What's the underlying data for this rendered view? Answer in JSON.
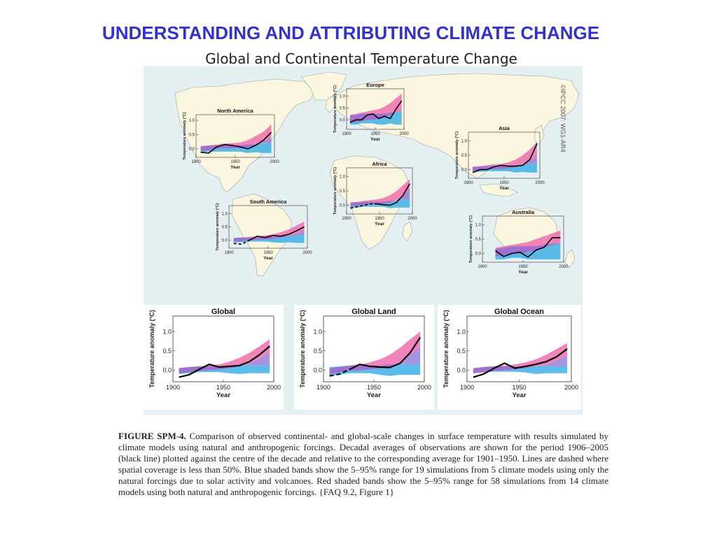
{
  "slide": {
    "title": "UNDERSTANDING AND ATTRIBUTING CLIMATE CHANGE",
    "figure_title": "Global and Continental Temperature Change",
    "copyright": "©IPCC  2007: WG1-AR4"
  },
  "caption": {
    "label": "FIGURE SPM-4.",
    "text": "Comparison of observed continental- and global-scale changes in surface temperature with results simulated by climate models using natural and anthropogenic forcings. Decadal averages of observations are shown for the period 1906–2005 (black line) plotted against the centre of the decade and relative to the corresponding average for 1901–1950. Lines are dashed where spatial coverage is less than 50%. Blue shaded bands show the 5–95% range for 19 simulations from 5 climate models using only the natural forcings due to solar activity and volcanoes. Red shaded bands show the 5–95% range for 58 simulations from 14 climate models using both natural and anthropogenic forcings.  {FAQ 9.2, Figure 1}"
  },
  "colors": {
    "ocean": "#e4f0f1",
    "land": "#fbf6df",
    "natural_band": "#3fb0e6",
    "anthro_band": "#ee6fae",
    "observed": "#000000",
    "title": "#3333cc"
  },
  "chart_data": [
    {
      "type": "line",
      "title": "North America",
      "xlabel": "Year",
      "ylabel": "Temperature anomaly (°C)",
      "xlim": [
        1900,
        2000
      ],
      "ylim": [
        -0.3,
        1.2
      ],
      "xticks": [
        "1900",
        "1950",
        "2000"
      ],
      "yticks": [
        "0.0",
        "0.5",
        "1.0"
      ],
      "x": [
        1906,
        1916,
        1926,
        1936,
        1946,
        1956,
        1966,
        1976,
        1986,
        1996
      ],
      "observed": [
        -0.12,
        -0.15,
        0.06,
        0.15,
        0.12,
        0.07,
        0.0,
        0.12,
        0.3,
        0.58
      ],
      "dashed_until": null,
      "natural_low": [
        -0.12,
        -0.1,
        -0.1,
        -0.1,
        -0.1,
        -0.1,
        -0.15,
        -0.12,
        -0.15,
        -0.15
      ],
      "natural_high": [
        0.08,
        0.1,
        0.12,
        0.12,
        0.12,
        0.12,
        0.15,
        0.15,
        0.2,
        0.2
      ],
      "anthro_low": [
        -0.08,
        -0.05,
        0.0,
        0.02,
        0.02,
        0.02,
        0.05,
        0.12,
        0.25,
        0.4
      ],
      "anthro_high": [
        0.1,
        0.12,
        0.15,
        0.18,
        0.2,
        0.22,
        0.3,
        0.45,
        0.6,
        0.85
      ]
    },
    {
      "type": "line",
      "title": "Europe",
      "xlabel": "Year",
      "ylabel": "Temperature anomaly (°C)",
      "xlim": [
        1900,
        2000
      ],
      "ylim": [
        -0.4,
        1.3
      ],
      "xticks": [
        "1900",
        "1950",
        "2000"
      ],
      "yticks": [
        "0.0",
        "0.5",
        "1.0"
      ],
      "x": [
        1906,
        1916,
        1926,
        1936,
        1946,
        1956,
        1966,
        1976,
        1986,
        1996
      ],
      "observed": [
        -0.1,
        0.0,
        0.0,
        0.2,
        0.25,
        0.05,
        0.15,
        0.05,
        0.45,
        0.8
      ],
      "dashed_until": null,
      "natural_low": [
        -0.2,
        -0.2,
        -0.15,
        -0.15,
        -0.15,
        -0.2,
        -0.2,
        -0.15,
        -0.2,
        -0.2
      ],
      "natural_high": [
        0.2,
        0.2,
        0.25,
        0.25,
        0.25,
        0.25,
        0.25,
        0.3,
        0.3,
        0.35
      ],
      "anthro_low": [
        -0.15,
        -0.1,
        -0.05,
        0.0,
        0.0,
        0.05,
        0.1,
        0.2,
        0.3,
        0.45
      ],
      "anthro_high": [
        0.2,
        0.25,
        0.3,
        0.35,
        0.4,
        0.45,
        0.55,
        0.7,
        0.9,
        1.1
      ]
    },
    {
      "type": "line",
      "title": "Asia",
      "xlabel": "Year",
      "ylabel": "Temperature anomaly (°C)",
      "xlim": [
        1900,
        2000
      ],
      "ylim": [
        -0.3,
        1.3
      ],
      "xticks": [
        "1900",
        "1950",
        "2000"
      ],
      "yticks": [
        "0.0",
        "0.5",
        "1.0"
      ],
      "x": [
        1906,
        1916,
        1926,
        1936,
        1946,
        1956,
        1966,
        1976,
        1986,
        1996
      ],
      "observed": [
        -0.1,
        0.0,
        0.0,
        0.1,
        0.15,
        0.12,
        0.12,
        0.15,
        0.35,
        0.9
      ],
      "dashed_until": null,
      "natural_low": [
        -0.08,
        -0.08,
        -0.05,
        -0.05,
        -0.05,
        -0.05,
        -0.1,
        -0.08,
        -0.1,
        -0.1
      ],
      "natural_high": [
        0.1,
        0.1,
        0.12,
        0.12,
        0.12,
        0.12,
        0.15,
        0.15,
        0.2,
        0.22
      ],
      "anthro_low": [
        -0.05,
        -0.02,
        0.0,
        0.02,
        0.03,
        0.05,
        0.08,
        0.15,
        0.3,
        0.45
      ],
      "anthro_high": [
        0.1,
        0.12,
        0.15,
        0.18,
        0.2,
        0.25,
        0.35,
        0.5,
        0.7,
        0.95
      ]
    },
    {
      "type": "line",
      "title": "Africa",
      "xlabel": "Year",
      "ylabel": "Temperature anomaly (°C)",
      "xlim": [
        1900,
        2000
      ],
      "ylim": [
        -0.3,
        1.3
      ],
      "xticks": [
        "1900",
        "1950",
        "2000"
      ],
      "yticks": [
        "0.0",
        "0.5",
        "1.0"
      ],
      "x": [
        1906,
        1916,
        1926,
        1936,
        1946,
        1956,
        1966,
        1976,
        1986,
        1996
      ],
      "observed": [
        -0.1,
        -0.05,
        0.0,
        0.05,
        0.05,
        0.02,
        0.0,
        0.1,
        0.35,
        0.75
      ],
      "dashed_until": 1946,
      "natural_low": [
        -0.08,
        -0.08,
        -0.05,
        -0.05,
        -0.05,
        -0.05,
        -0.1,
        -0.08,
        -0.08,
        -0.08
      ],
      "natural_high": [
        0.1,
        0.1,
        0.12,
        0.12,
        0.12,
        0.12,
        0.15,
        0.15,
        0.2,
        0.22
      ],
      "anthro_low": [
        -0.05,
        -0.02,
        0.0,
        0.02,
        0.03,
        0.05,
        0.1,
        0.2,
        0.35,
        0.55
      ],
      "anthro_high": [
        0.1,
        0.12,
        0.15,
        0.18,
        0.2,
        0.25,
        0.35,
        0.5,
        0.7,
        0.9
      ]
    },
    {
      "type": "line",
      "title": "South America",
      "xlabel": "Year",
      "ylabel": "Temperature anomaly (°C)",
      "xlim": [
        1900,
        2000
      ],
      "ylim": [
        -0.3,
        1.3
      ],
      "xticks": [
        "1900",
        "1950",
        "2000"
      ],
      "yticks": [
        "0.0",
        "0.5",
        "1.0"
      ],
      "x": [
        1906,
        1916,
        1926,
        1936,
        1946,
        1956,
        1966,
        1976,
        1986,
        1996
      ],
      "observed": [
        -0.12,
        -0.15,
        0.0,
        0.15,
        0.1,
        0.18,
        0.15,
        0.22,
        0.35,
        0.5
      ],
      "dashed_until": 1926,
      "natural_low": [
        -0.08,
        -0.08,
        -0.05,
        -0.05,
        -0.05,
        -0.08,
        -0.1,
        -0.08,
        -0.1,
        -0.1
      ],
      "natural_high": [
        0.08,
        0.1,
        0.1,
        0.1,
        0.12,
        0.12,
        0.15,
        0.15,
        0.18,
        0.2
      ],
      "anthro_low": [
        -0.05,
        -0.03,
        0.0,
        0.02,
        0.03,
        0.05,
        0.1,
        0.15,
        0.25,
        0.35
      ],
      "anthro_high": [
        0.08,
        0.1,
        0.12,
        0.15,
        0.18,
        0.22,
        0.3,
        0.4,
        0.55,
        0.7
      ]
    },
    {
      "type": "line",
      "title": "Australia",
      "xlabel": "Year",
      "ylabel": "Temperature anomaly (°C)",
      "xlim": [
        1900,
        2000
      ],
      "ylim": [
        -0.3,
        1.3
      ],
      "xticks": [
        "1900",
        "1950",
        "2000"
      ],
      "yticks": [
        "0.0",
        "0.5",
        "1.0"
      ],
      "x": [
        1916,
        1926,
        1936,
        1946,
        1956,
        1966,
        1976,
        1986,
        1996
      ],
      "observed": [
        0.1,
        -0.1,
        0.0,
        0.05,
        -0.12,
        0.12,
        0.22,
        0.55,
        0.55
      ],
      "dashed_until": null,
      "natural_low": [
        -0.2,
        -0.2,
        -0.15,
        -0.15,
        -0.2,
        -0.2,
        -0.2,
        -0.2,
        -0.2
      ],
      "natural_high": [
        0.15,
        0.2,
        0.25,
        0.25,
        0.25,
        0.25,
        0.3,
        0.35,
        0.35
      ],
      "anthro_low": [
        -0.1,
        -0.05,
        0.0,
        0.0,
        0.05,
        0.1,
        0.2,
        0.3,
        0.35
      ],
      "anthro_high": [
        0.2,
        0.25,
        0.3,
        0.35,
        0.4,
        0.5,
        0.6,
        0.7,
        0.8
      ]
    },
    {
      "type": "line",
      "title": "Global",
      "xlabel": "Year",
      "ylabel": "Temperature anomaly (°C)",
      "xlim": [
        1900,
        2000
      ],
      "ylim": [
        -0.3,
        1.4
      ],
      "xticks": [
        "1900",
        "1950",
        "2000"
      ],
      "yticks": [
        "0.0",
        "0.5",
        "1.0"
      ],
      "x": [
        1906,
        1916,
        1926,
        1936,
        1946,
        1956,
        1966,
        1976,
        1986,
        1996
      ],
      "observed": [
        -0.18,
        -0.12,
        0.02,
        0.15,
        0.08,
        0.1,
        0.12,
        0.22,
        0.4,
        0.62
      ],
      "dashed_until": null,
      "natural_low": [
        -0.1,
        -0.08,
        -0.05,
        -0.05,
        -0.05,
        -0.08,
        -0.1,
        -0.08,
        -0.08,
        -0.08
      ],
      "natural_high": [
        0.05,
        0.08,
        0.1,
        0.1,
        0.1,
        0.08,
        0.12,
        0.12,
        0.12,
        0.12
      ],
      "anthro_low": [
        -0.08,
        -0.05,
        -0.02,
        0.0,
        0.02,
        0.05,
        0.1,
        0.18,
        0.3,
        0.45
      ],
      "anthro_high": [
        0.05,
        0.08,
        0.1,
        0.12,
        0.15,
        0.22,
        0.32,
        0.45,
        0.62,
        0.8
      ]
    },
    {
      "type": "line",
      "title": "Global Land",
      "xlabel": "Year",
      "ylabel": "Temperature anomaly (°C)",
      "xlim": [
        1900,
        2000
      ],
      "ylim": [
        -0.3,
        1.4
      ],
      "xticks": [
        "1900",
        "1950",
        "2000"
      ],
      "yticks": [
        "0.0",
        "0.5",
        "1.0"
      ],
      "x": [
        1906,
        1916,
        1926,
        1936,
        1946,
        1956,
        1966,
        1976,
        1986,
        1996
      ],
      "observed": [
        -0.15,
        -0.1,
        0.02,
        0.15,
        0.1,
        0.08,
        0.07,
        0.18,
        0.45,
        0.85
      ],
      "dashed_until": 1926,
      "natural_low": [
        -0.15,
        -0.12,
        -0.08,
        -0.08,
        -0.08,
        -0.12,
        -0.15,
        -0.12,
        -0.12,
        -0.12
      ],
      "natural_high": [
        0.08,
        0.1,
        0.12,
        0.12,
        0.12,
        0.12,
        0.15,
        0.15,
        0.15,
        0.15
      ],
      "anthro_low": [
        -0.1,
        -0.05,
        -0.02,
        0.0,
        0.02,
        0.05,
        0.1,
        0.2,
        0.4,
        0.6
      ],
      "anthro_high": [
        0.05,
        0.08,
        0.12,
        0.15,
        0.2,
        0.28,
        0.4,
        0.58,
        0.8,
        1.0
      ]
    },
    {
      "type": "line",
      "title": "Global Ocean",
      "xlabel": "Year",
      "ylabel": "Temperature anomaly (°C)",
      "xlim": [
        1900,
        2000
      ],
      "ylim": [
        -0.3,
        1.4
      ],
      "xticks": [
        "1900",
        "1950",
        "2000"
      ],
      "yticks": [
        "0.0",
        "0.5",
        "1.0"
      ],
      "x": [
        1906,
        1916,
        1926,
        1936,
        1946,
        1956,
        1966,
        1976,
        1986,
        1996
      ],
      "observed": [
        -0.18,
        -0.1,
        0.05,
        0.18,
        0.05,
        0.1,
        0.15,
        0.22,
        0.35,
        0.55
      ],
      "dashed_until": null,
      "natural_low": [
        -0.08,
        -0.06,
        -0.04,
        -0.04,
        -0.04,
        -0.06,
        -0.1,
        -0.08,
        -0.08,
        -0.08
      ],
      "natural_high": [
        0.05,
        0.08,
        0.1,
        0.1,
        0.1,
        0.08,
        0.1,
        0.1,
        0.1,
        0.1
      ],
      "anthro_low": [
        -0.08,
        -0.05,
        -0.02,
        0.0,
        0.02,
        0.05,
        0.1,
        0.15,
        0.25,
        0.38
      ],
      "anthro_high": [
        0.05,
        0.08,
        0.1,
        0.12,
        0.15,
        0.2,
        0.28,
        0.4,
        0.55,
        0.7
      ]
    }
  ]
}
